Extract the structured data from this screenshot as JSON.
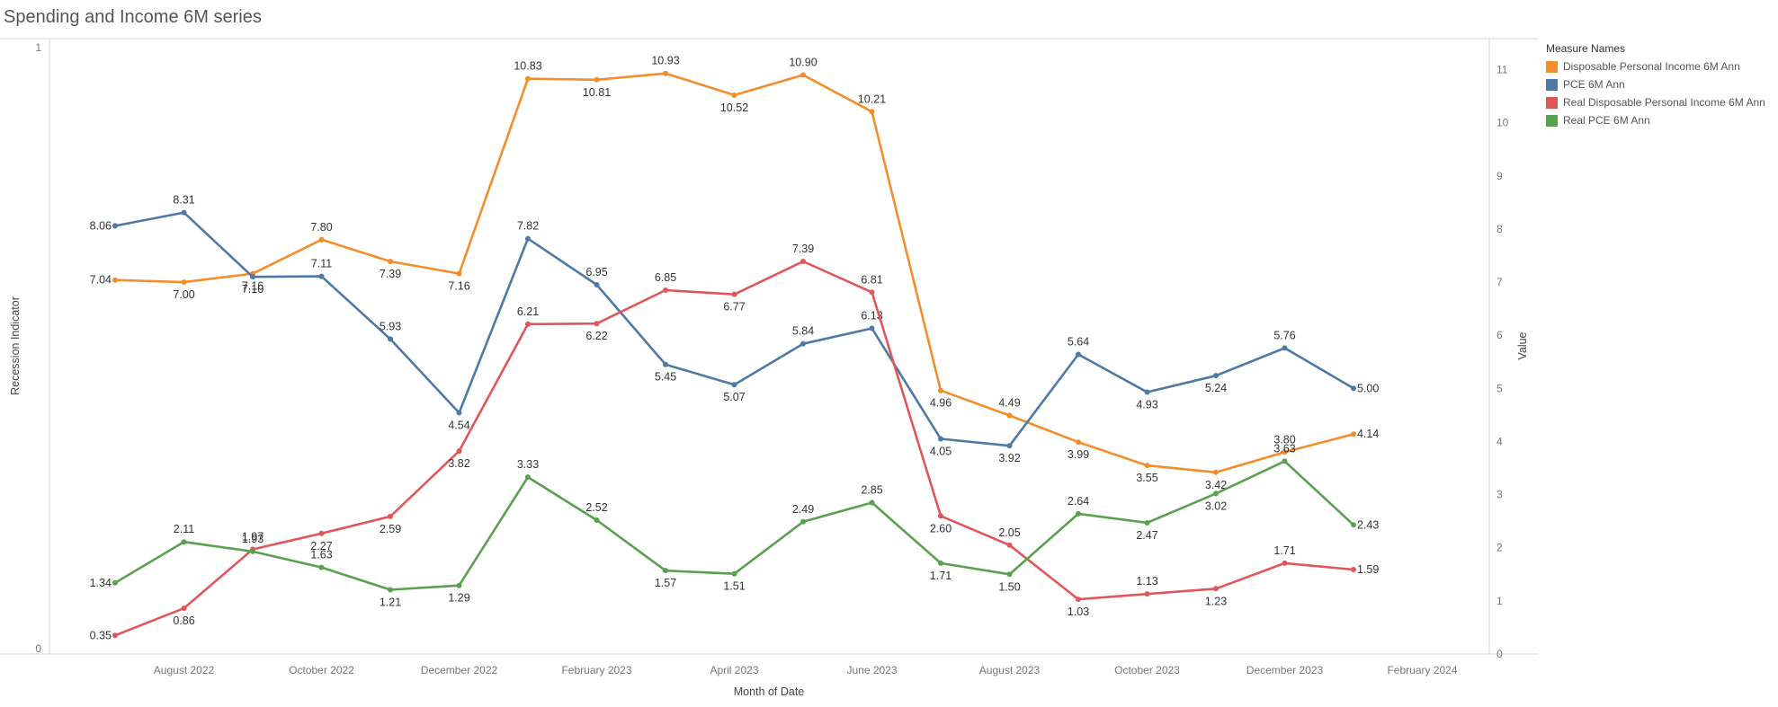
{
  "chart_data": {
    "type": "line",
    "title": "Spending and Income 6M series",
    "xlabel": "Month of Date",
    "ylabel_left": "Recession Indicator",
    "ylabel_right": "Value",
    "x": [
      "2022-07",
      "2022-08",
      "2022-09",
      "2022-10",
      "2022-11",
      "2022-12",
      "2023-01",
      "2023-02",
      "2023-03",
      "2023-04",
      "2023-05",
      "2023-06",
      "2023-07",
      "2023-08",
      "2023-09",
      "2023-10",
      "2023-11",
      "2023-12",
      "2024-01"
    ],
    "x_ticks": [
      "August 2022",
      "October 2022",
      "December 2022",
      "February 2023",
      "April 2023",
      "June 2023",
      "August 2023",
      "October 2023",
      "December 2023",
      "February 2024"
    ],
    "x_tick_dates": [
      "2022-08",
      "2022-10",
      "2022-12",
      "2023-02",
      "2023-04",
      "2023-06",
      "2023-08",
      "2023-10",
      "2023-12",
      "2024-02"
    ],
    "left_axis": {
      "range": [
        0,
        1
      ],
      "ticks": [
        "0",
        "1"
      ]
    },
    "right_axis": {
      "range": [
        0,
        11.5
      ],
      "ticks": [
        "0",
        "1",
        "2",
        "3",
        "4",
        "5",
        "6",
        "7",
        "8",
        "9",
        "10",
        "11"
      ]
    },
    "grid": false,
    "legend_title": "Measure Names",
    "legend_position": "right",
    "series": [
      {
        "name": "Disposable Personal Income 6M Ann",
        "color": "#f28e2b",
        "values": [
          7.04,
          7.0,
          7.16,
          7.8,
          7.39,
          7.16,
          10.83,
          10.81,
          10.93,
          10.52,
          10.9,
          10.21,
          4.96,
          4.49,
          3.99,
          3.55,
          3.42,
          3.8,
          4.14
        ],
        "labels": [
          "7.04",
          "7.00",
          "7.16",
          "7.80",
          "7.39",
          "7.16",
          "10.83",
          "10.81",
          "10.93",
          "10.52",
          "10.90",
          "10.21",
          "4.96",
          "4.49",
          "3.99",
          "3.55",
          "3.42",
          "3.80",
          "4.14"
        ]
      },
      {
        "name": "PCE 6M Ann",
        "color": "#4e79a7",
        "values": [
          8.06,
          8.31,
          7.1,
          7.11,
          5.93,
          4.54,
          7.82,
          6.95,
          5.45,
          5.07,
          5.84,
          6.13,
          4.05,
          3.92,
          5.64,
          4.93,
          5.24,
          5.76,
          5.0
        ],
        "labels": [
          "8.06",
          "8.31",
          "7.10",
          "7.11",
          "5.93",
          "4.54",
          "7.82",
          "6.95",
          "5.45",
          "5.07",
          "5.84",
          "6.13",
          "4.05",
          "3.92",
          "5.64",
          "4.93",
          "5.24",
          "5.76",
          "5.00"
        ]
      },
      {
        "name": "Real Disposable Personal Income 6M Ann",
        "color": "#e15759",
        "values": [
          0.35,
          0.86,
          1.97,
          2.27,
          2.59,
          3.82,
          6.21,
          6.22,
          6.85,
          6.77,
          7.39,
          6.81,
          2.6,
          2.05,
          1.03,
          1.13,
          1.23,
          1.71,
          1.59
        ],
        "labels": [
          "0.35",
          "0.86",
          "1.97",
          "2.27",
          "2.59",
          "3.82",
          "6.21",
          "6.22",
          "6.85",
          "6.77",
          "7.39",
          "6.81",
          "2.60",
          "2.05",
          "1.03",
          "1.13",
          "1.23",
          "1.71",
          "1.59"
        ]
      },
      {
        "name": "Real PCE 6M Ann",
        "color": "#59a14f",
        "values": [
          1.34,
          2.11,
          1.93,
          1.63,
          1.21,
          1.29,
          3.33,
          2.52,
          1.57,
          1.51,
          2.49,
          2.85,
          1.71,
          1.5,
          2.64,
          2.47,
          3.02,
          3.63,
          2.43
        ],
        "labels": [
          "1.34",
          "2.11",
          "1.93",
          "1.63",
          "1.21",
          "1.29",
          "3.33",
          "2.52",
          "1.57",
          "1.51",
          "2.49",
          "2.85",
          "1.71",
          "1.50",
          "2.64",
          "2.47",
          "3.02",
          "3.63",
          "2.43"
        ]
      }
    ]
  }
}
